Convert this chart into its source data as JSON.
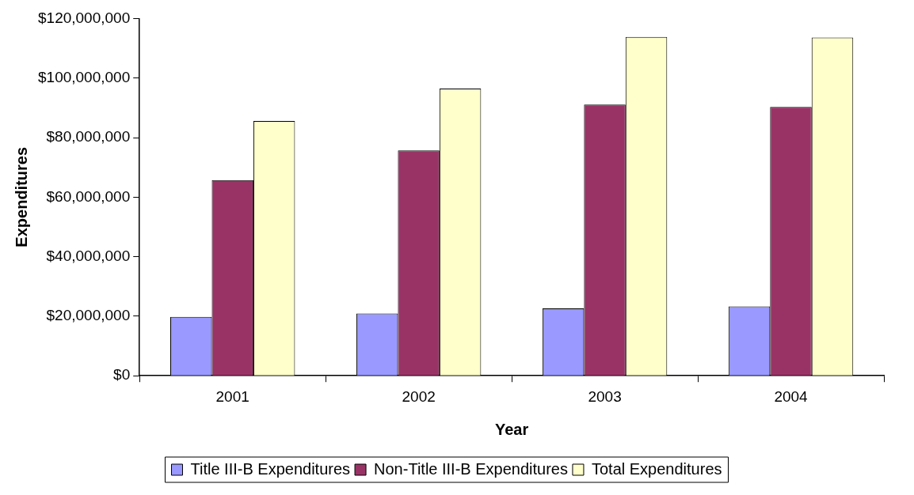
{
  "chart_data": {
    "type": "bar",
    "xlabel": "Year",
    "ylabel": "Expenditures",
    "categories": [
      "2001",
      "2002",
      "2003",
      "2004"
    ],
    "series": [
      {
        "name": "Title III-B Expenditures",
        "color": "#9999ff",
        "values": [
          19800000,
          20900000,
          22600000,
          23300000
        ]
      },
      {
        "name": "Non-Title III-B Expenditures",
        "color": "#993366",
        "values": [
          65700000,
          75700000,
          91100000,
          90300000
        ]
      },
      {
        "name": "Total Expenditures",
        "color": "#ffffcc",
        "values": [
          85600000,
          96500000,
          113800000,
          113600000
        ]
      }
    ],
    "ylim": [
      0,
      120000000
    ],
    "yticks": [
      {
        "value": 0,
        "label": "$0"
      },
      {
        "value": 20000000,
        "label": "$20,000,000"
      },
      {
        "value": 40000000,
        "label": "$40,000,000"
      },
      {
        "value": 60000000,
        "label": "$60,000,000"
      },
      {
        "value": 80000000,
        "label": "$80,000,000"
      },
      {
        "value": 100000000,
        "label": "$100,000,000"
      },
      {
        "value": 120000000,
        "label": "$120,000,000"
      }
    ],
    "grid": false,
    "legend": "bottom"
  }
}
